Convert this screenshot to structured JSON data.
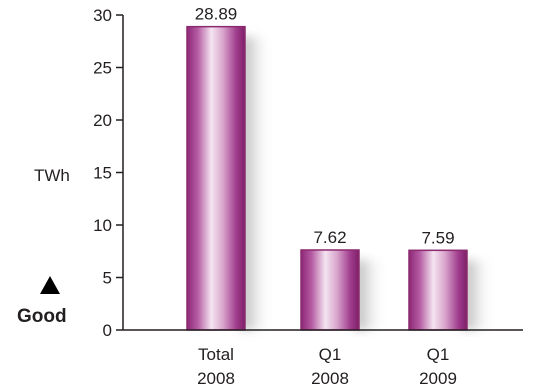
{
  "chart_data": {
    "type": "bar",
    "categories": [
      [
        "Total",
        "2008"
      ],
      [
        "Q1",
        "2008"
      ],
      [
        "Q1",
        "2009"
      ]
    ],
    "values": [
      28.89,
      7.62,
      7.59
    ],
    "value_labels": [
      "28.89",
      "7.62",
      "7.59"
    ],
    "ylabel": "TWh",
    "ylim": [
      0,
      30
    ],
    "yticks": [
      0,
      5,
      10,
      15,
      20,
      25,
      30
    ],
    "grid": false,
    "legend": "none"
  },
  "indicator": {
    "label": "Good",
    "icon": "up-triangle-icon"
  },
  "colors": {
    "bar_edge": "#8b2a6e",
    "bar_dark": "#9e2e82",
    "bar_light": "#f4e4f0",
    "axis": "#231f20",
    "shadow": "#9a9a9a"
  }
}
